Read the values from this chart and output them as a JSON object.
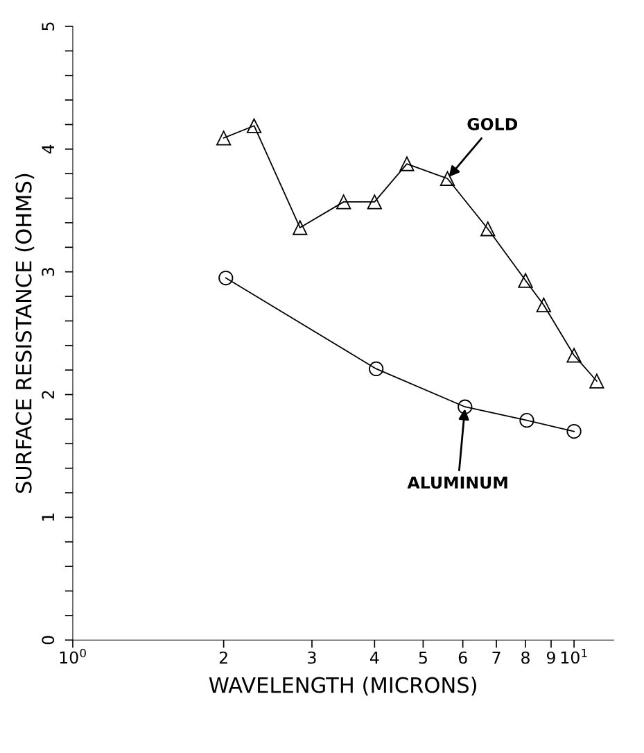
{
  "chart_data": {
    "type": "line",
    "xlabel": "WAVELENGTH (MICRONS)",
    "ylabel": "SURFACE RESISTANCE (OHMS)",
    "log": "x",
    "xlim": [
      1,
      12
    ],
    "ylim": [
      0,
      5
    ],
    "xticks": [
      {
        "value": 1,
        "label": "10$^{0}$"
      },
      2,
      3,
      4,
      5,
      6,
      7,
      8,
      9,
      {
        "value": 10,
        "label": "10$^{1}$"
      }
    ],
    "yticks": [
      0,
      {
        "value": 0.2,
        "label": null
      },
      {
        "value": 0.4,
        "label": null
      },
      {
        "value": 0.6,
        "label": null
      },
      {
        "value": 0.8,
        "label": null
      },
      1,
      {
        "value": 1.2,
        "label": null
      },
      {
        "value": 1.4,
        "label": null
      },
      {
        "value": 1.6,
        "label": null
      },
      {
        "value": 1.8,
        "label": null
      },
      2,
      {
        "value": 2.2,
        "label": null
      },
      {
        "value": 2.4,
        "label": null
      },
      {
        "value": 2.6,
        "label": null
      },
      {
        "value": 2.8,
        "label": null
      },
      3,
      {
        "value": 3.2,
        "label": null
      },
      {
        "value": 3.4,
        "label": null
      },
      {
        "value": 3.6,
        "label": null
      },
      {
        "value": 3.8,
        "label": null
      },
      4,
      {
        "value": 4.2,
        "label": null
      },
      {
        "value": 4.4,
        "label": null
      },
      {
        "value": 4.6,
        "label": null
      },
      {
        "value": 4.8,
        "label": null
      },
      5
    ],
    "grid": false,
    "line_style": "solid",
    "series": [
      {
        "color": "#000000",
        "marker": "triangle",
        "x": [
          2.0,
          2.3,
          2.84,
          3.47,
          4.0,
          4.64,
          5.59,
          6.73,
          8.0,
          8.7,
          10.0,
          11.1
        ],
        "values": [
          4.09,
          4.19,
          3.36,
          3.57,
          3.57,
          3.88,
          3.76,
          3.35,
          2.93,
          2.73,
          2.32,
          2.11
        ]
      },
      {
        "color": "#000000",
        "marker": "circle",
        "x": [
          2.02,
          4.03,
          6.06,
          8.05,
          10.0
        ],
        "values": [
          2.95,
          2.21,
          1.9,
          1.79,
          1.7
        ]
      }
    ],
    "annotations": [
      {
        "text": "GOLD",
        "x": 5.59,
        "y": 3.76
      },
      {
        "text": "ALUMINUM",
        "x": 6.06,
        "y": 1.9
      }
    ]
  }
}
